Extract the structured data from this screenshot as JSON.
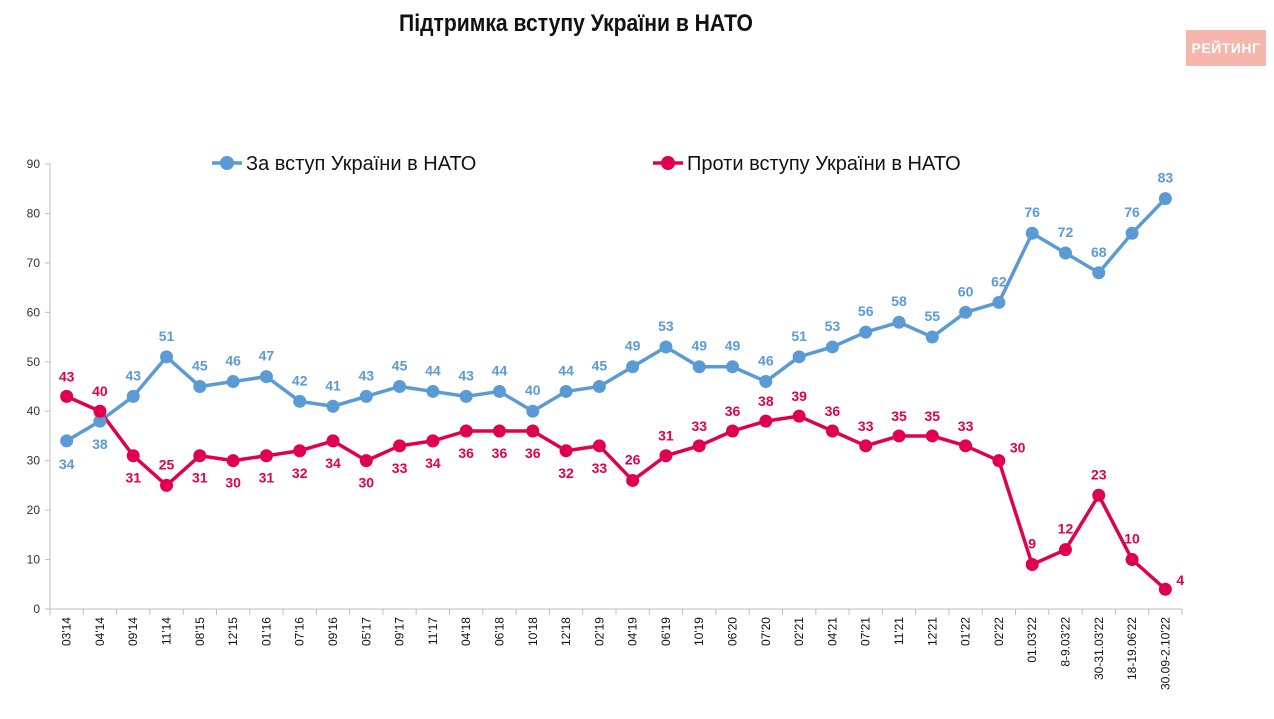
{
  "title": "Підтримка вступу України в НАТО",
  "logo_text": "РЕЙТИНГ",
  "chart_data": {
    "type": "line",
    "title": "Підтримка вступу України в НАТО",
    "legend_position": "top",
    "grid": false,
    "ylim": [
      0,
      90
    ],
    "yticks": [
      0,
      10,
      20,
      30,
      40,
      50,
      60,
      70,
      80,
      90
    ],
    "categories": [
      "03'14",
      "04'14",
      "09'14",
      "11'14",
      "08'15",
      "12'15",
      "01'16",
      "07'16",
      "09'16",
      "05'17",
      "09'17",
      "11'17",
      "04'18",
      "06'18",
      "10'18",
      "12'18",
      "02'19",
      "04'19",
      "06'19",
      "10'19",
      "06'20",
      "07'20",
      "02'21",
      "04'21",
      "07'21",
      "11'21",
      "12'21",
      "01'22",
      "02'22",
      "01.03'22",
      "8-9.03'22",
      "30-31.03'22",
      "18-19.06'22",
      "30.09-2.10'22"
    ],
    "series": [
      {
        "name": "За вступ України в НАТО",
        "color": "#5b9bd5",
        "values": [
          34,
          38,
          43,
          51,
          45,
          46,
          47,
          42,
          41,
          43,
          45,
          44,
          43,
          44,
          40,
          44,
          45,
          49,
          53,
          49,
          49,
          46,
          51,
          53,
          56,
          58,
          55,
          60,
          62,
          76,
          72,
          68,
          76,
          83
        ]
      },
      {
        "name": "Проти вступу України в НАТО",
        "color": "#e0004d",
        "values": [
          43,
          40,
          31,
          25,
          31,
          30,
          31,
          32,
          34,
          30,
          33,
          34,
          36,
          36,
          36,
          32,
          33,
          26,
          31,
          33,
          36,
          38,
          39,
          36,
          33,
          35,
          35,
          33,
          30,
          9,
          12,
          23,
          10,
          4
        ]
      }
    ]
  }
}
